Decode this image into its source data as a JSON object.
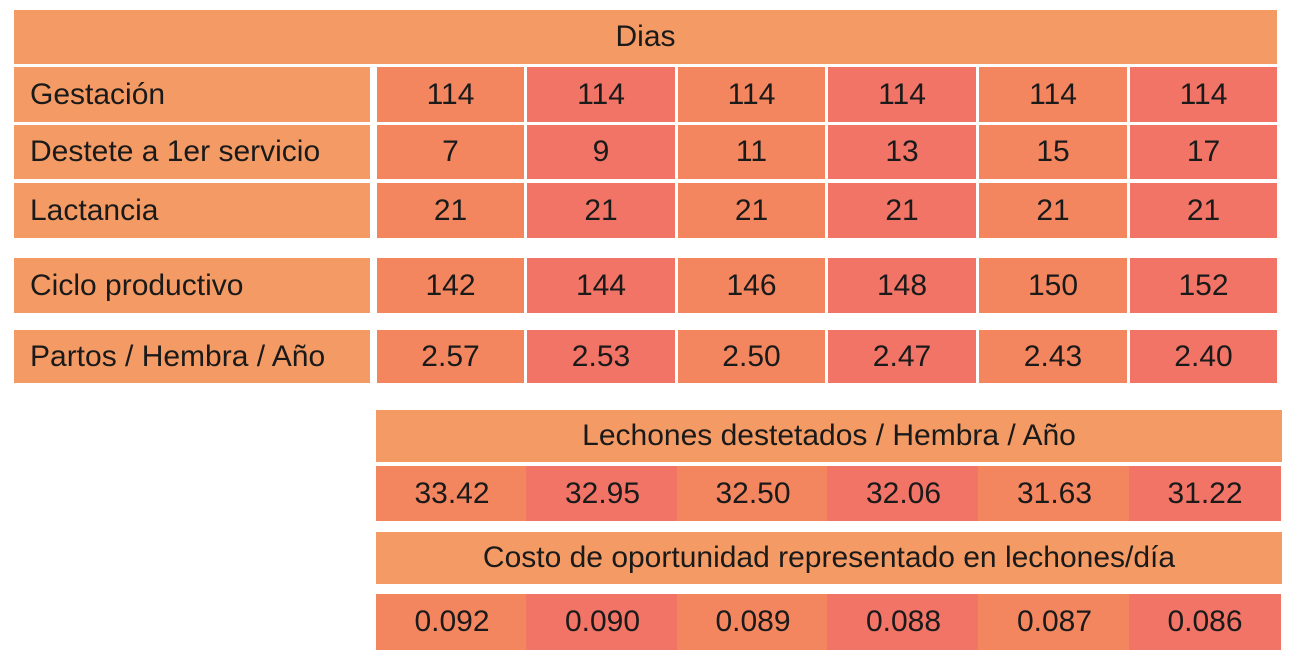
{
  "table1": {
    "header": "Dias",
    "rows": [
      {
        "label": "Gestación",
        "values": [
          "114",
          "114",
          "114",
          "114",
          "114",
          "114"
        ]
      },
      {
        "label": "Destete a 1er servicio",
        "values": [
          "7",
          "9",
          "11",
          "13",
          "15",
          "17"
        ]
      },
      {
        "label": "Lactancia",
        "values": [
          "21",
          "21",
          "21",
          "21",
          "21",
          "21"
        ]
      },
      {
        "label": "Ciclo productivo",
        "values": [
          "142",
          "144",
          "146",
          "148",
          "150",
          "152"
        ]
      },
      {
        "label": "Partos / Hembra / Año",
        "values": [
          "2.57",
          "2.53",
          "2.50",
          "2.47",
          "2.43",
          "2.40"
        ]
      }
    ]
  },
  "table2": {
    "header": "Lechones destetados / Hembra / Año",
    "values": [
      "33.42",
      "32.95",
      "32.50",
      "32.06",
      "31.63",
      "31.22"
    ]
  },
  "table3": {
    "header": "Costo de oportunidad representado en lechones/día",
    "values": [
      "0.092",
      "0.090",
      "0.089",
      "0.088",
      "0.087",
      "0.086"
    ]
  },
  "colors": {
    "header": "#f49a64",
    "cell_a": "#f3865f",
    "cell_b": "#f17466"
  }
}
